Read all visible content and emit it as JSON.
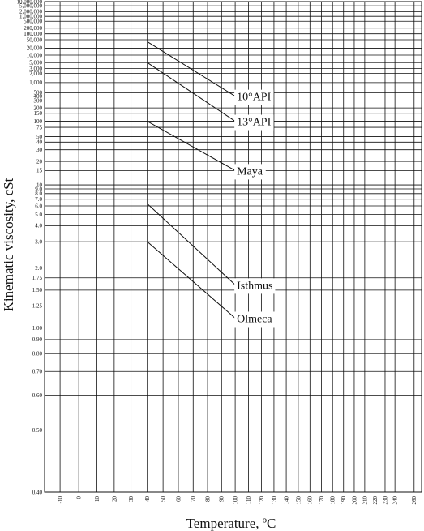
{
  "chart_data": {
    "type": "line",
    "ylabel": "Kinematic viscosity, cSt",
    "xlabel": "Temperature, ºC",
    "y_scale": "ASTM D341 (log-log)",
    "x_scale": "ASTM D341 (log absolute temperature)",
    "grid": true,
    "yticks": [
      {
        "value": 10000000,
        "label": "10,000,000"
      },
      {
        "value": 5000000,
        "label": "5,000,000"
      },
      {
        "value": 2000000,
        "label": "2,000,000"
      },
      {
        "value": 1000000,
        "label": "1,000,000"
      },
      {
        "value": 500000,
        "label": "500,000"
      },
      {
        "value": 200000,
        "label": "200,000"
      },
      {
        "value": 100000,
        "label": "100,000"
      },
      {
        "value": 50000,
        "label": "50,000"
      },
      {
        "value": 20000,
        "label": "20,000"
      },
      {
        "value": 10000,
        "label": "10,000"
      },
      {
        "value": 5000,
        "label": "5,000"
      },
      {
        "value": 3000,
        "label": "3,000"
      },
      {
        "value": 2000,
        "label": "2,000"
      },
      {
        "value": 1000,
        "label": "1,000"
      },
      {
        "value": 500,
        "label": "500"
      },
      {
        "value": 400,
        "label": "400"
      },
      {
        "value": 300,
        "label": "300"
      },
      {
        "value": 200,
        "label": "200"
      },
      {
        "value": 150,
        "label": "150"
      },
      {
        "value": 100,
        "label": "100"
      },
      {
        "value": 75,
        "label": "75"
      },
      {
        "value": 50,
        "label": "50"
      },
      {
        "value": 40,
        "label": "40"
      },
      {
        "value": 30,
        "label": "30"
      },
      {
        "value": 20,
        "label": "20"
      },
      {
        "value": 15,
        "label": "15"
      },
      {
        "value": 10,
        "label": "10"
      },
      {
        "value": 9,
        "label": "9.0"
      },
      {
        "value": 8,
        "label": "8.0"
      },
      {
        "value": 7,
        "label": "7.0"
      },
      {
        "value": 6,
        "label": "6.0"
      },
      {
        "value": 5,
        "label": "5.0"
      },
      {
        "value": 4,
        "label": "4.0"
      },
      {
        "value": 3,
        "label": "3.0"
      },
      {
        "value": 2,
        "label": "2.0"
      },
      {
        "value": 1.75,
        "label": "1.75"
      },
      {
        "value": 1.5,
        "label": "1.50"
      },
      {
        "value": 1.25,
        "label": "1.25"
      },
      {
        "value": 1,
        "label": "1.00"
      },
      {
        "value": 0.9,
        "label": "0.90"
      },
      {
        "value": 0.8,
        "label": "0.80"
      },
      {
        "value": 0.7,
        "label": "0.70"
      },
      {
        "value": 0.6,
        "label": "0.60"
      },
      {
        "value": 0.5,
        "label": "0.50"
      },
      {
        "value": 0.4,
        "label": "0.40"
      }
    ],
    "xticks": [
      {
        "value": -10,
        "label": "-10"
      },
      {
        "value": 0,
        "label": "0"
      },
      {
        "value": 10,
        "label": "10"
      },
      {
        "value": 20,
        "label": "20"
      },
      {
        "value": 30,
        "label": "30"
      },
      {
        "value": 40,
        "label": "40"
      },
      {
        "value": 50,
        "label": "50"
      },
      {
        "value": 60,
        "label": "60"
      },
      {
        "value": 70,
        "label": "70"
      },
      {
        "value": 80,
        "label": "80"
      },
      {
        "value": 90,
        "label": "90"
      },
      {
        "value": 100,
        "label": "100"
      },
      {
        "value": 110,
        "label": "110"
      },
      {
        "value": 120,
        "label": "120"
      },
      {
        "value": 130,
        "label": "130"
      },
      {
        "value": 140,
        "label": "140"
      },
      {
        "value": 150,
        "label": "150"
      },
      {
        "value": 160,
        "label": "160"
      },
      {
        "value": 170,
        "label": "170"
      },
      {
        "value": 180,
        "label": "180"
      },
      {
        "value": 190,
        "label": "190"
      },
      {
        "value": 200,
        "label": "200"
      },
      {
        "value": 210,
        "label": "210"
      },
      {
        "value": 220,
        "label": "220"
      },
      {
        "value": 230,
        "label": "230"
      },
      {
        "value": 240,
        "label": "240"
      },
      {
        "value": 260,
        "label": "260"
      }
    ],
    "series": [
      {
        "name": "10°API",
        "x": [
          40,
          100
        ],
        "y": [
          40000,
          400
        ]
      },
      {
        "name": "13°API",
        "x": [
          40,
          100
        ],
        "y": [
          5000,
          100
        ]
      },
      {
        "name": "Maya",
        "x": [
          40,
          100
        ],
        "y": [
          100,
          15
        ]
      },
      {
        "name": "Isthmus",
        "x": [
          40,
          100
        ],
        "y": [
          6.3,
          1.6
        ]
      },
      {
        "name": "Olmeca",
        "x": [
          40,
          100
        ],
        "y": [
          3,
          1.1
        ]
      }
    ]
  }
}
